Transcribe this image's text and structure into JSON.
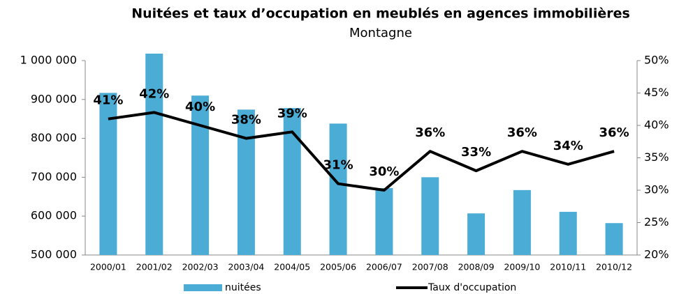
{
  "chart_data": {
    "type": "bar_line",
    "title": "Nuitées et taux d’occupation en meublés en agences immobilières",
    "subtitle": "Montagne",
    "categories": [
      "2000/01",
      "2001/02",
      "2002/03",
      "2003/04",
      "2004/05",
      "2005/06",
      "2006/07",
      "2007/08",
      "2008/09",
      "2009/10",
      "2010/11",
      "2010/12"
    ],
    "series": [
      {
        "name": "nuitées",
        "color": "#4bacd6",
        "type": "bar",
        "axis": "y",
        "values": [
          917000,
          1018000,
          910000,
          874000,
          878000,
          838000,
          672000,
          700000,
          607000,
          667000,
          611000,
          582000
        ]
      },
      {
        "name": "Taux d'occupation",
        "color": "#000000",
        "type": "line",
        "axis": "y2",
        "values": [
          41,
          42,
          40,
          38,
          39,
          31,
          30,
          36,
          33,
          36,
          34,
          36
        ],
        "value_labels": [
          "41%",
          "42%",
          "40%",
          "38%",
          "39%",
          "31%",
          "30%",
          "36%",
          "33%",
          "36%",
          "34%",
          "36%"
        ]
      }
    ],
    "ylim": [
      500000,
      1000000
    ],
    "yticks": [
      {
        "value": 500000,
        "label": "500 000"
      },
      {
        "value": 600000,
        "label": "600 000"
      },
      {
        "value": 700000,
        "label": "700 000"
      },
      {
        "value": 800000,
        "label": "800 000"
      },
      {
        "value": 900000,
        "label": "900 000"
      },
      {
        "value": 1000000,
        "label": "1 000 000"
      }
    ],
    "y2lim": [
      20,
      50
    ],
    "y2ticks": [
      {
        "value": 20,
        "label": "20%"
      },
      {
        "value": 25,
        "label": "25%"
      },
      {
        "value": 30,
        "label": "30%"
      },
      {
        "value": 35,
        "label": "35%"
      },
      {
        "value": 40,
        "label": "40%"
      },
      {
        "value": 45,
        "label": "45%"
      },
      {
        "value": 50,
        "label": "50%"
      }
    ],
    "grid": false,
    "legend": "bottom"
  }
}
